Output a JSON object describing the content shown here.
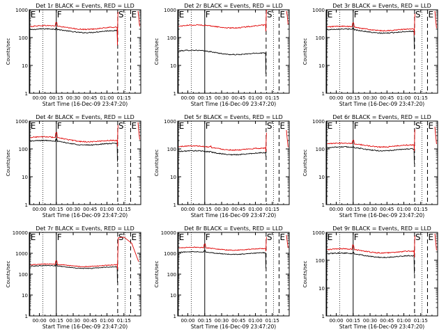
{
  "figure": {
    "background": "#ffffff",
    "colors": {
      "events": "#000000",
      "lld": "#e00000",
      "axis": "#000000",
      "marker": "#000000"
    }
  },
  "chart_data": [
    {
      "type": "line",
      "title": "Det 1r BLACK = Events, RED = LLD",
      "xlabel": "Start Time (16-Dec-09 23:47:20)",
      "ylabel": "Counts/sec",
      "xtick_labels": [
        "00:00",
        "00:15",
        "00:30",
        "00:45",
        "01:00",
        "01:15"
      ],
      "ytick_labels": [
        "1",
        "10",
        "100",
        "1000"
      ],
      "y_scale": "log",
      "ylim": [
        1,
        1000
      ],
      "xlim_minutes": [
        -9,
        90
      ],
      "markers": [
        {
          "label": "E",
          "t": -8.5,
          "style": "solid"
        },
        {
          "label": "F",
          "t": 15,
          "style": "solid"
        },
        {
          "label": "S",
          "t": 69.5,
          "style": "dashed"
        },
        {
          "label": "E",
          "t": 81,
          "style": "dashed"
        }
      ],
      "dotted_lines_t": [
        3,
        76
      ],
      "series": [
        {
          "name": "Events",
          "color": "#000000",
          "y0": 190,
          "y1": 160,
          "bump": 15,
          "bump_amp": 1.1,
          "dip": 2,
          "end": "none"
        },
        {
          "name": "LLD",
          "color": "#e00000",
          "y0": 250,
          "y1": 210,
          "bump": 15,
          "bump_amp": 1.35,
          "dip": 4,
          "end": "spike"
        }
      ]
    },
    {
      "type": "line",
      "title": "Det 2r BLACK = Events, RED = LLD",
      "xlabel": "Start Time (16-Dec-09 23:47:20)",
      "ylabel": "Counts/sec",
      "xtick_labels": [
        "00:00",
        "00:15",
        "00:30",
        "00:45",
        "01:00",
        "01:15"
      ],
      "ytick_labels": [
        "1",
        "10",
        "100",
        "1000"
      ],
      "y_scale": "log",
      "ylim": [
        1,
        1000
      ],
      "xlim_minutes": [
        -9,
        90
      ],
      "markers": [
        {
          "label": "E",
          "t": -8.5,
          "style": "solid"
        },
        {
          "label": "F",
          "t": 15,
          "style": "solid"
        },
        {
          "label": "S",
          "t": 69.5,
          "style": "dashed"
        },
        {
          "label": "E",
          "t": 81,
          "style": "dashed"
        }
      ],
      "dotted_lines_t": [
        3,
        76
      ],
      "series": [
        {
          "name": "Events",
          "color": "#000000",
          "y0": 33,
          "y1": 25,
          "bump": 15,
          "bump_amp": 1.0,
          "dip": 5,
          "end": "none"
        },
        {
          "name": "LLD",
          "color": "#e00000",
          "y0": 255,
          "y1": 250,
          "bump": 15,
          "bump_amp": 1.0,
          "dip": 1.5,
          "end": "spike"
        }
      ]
    },
    {
      "type": "line",
      "title": "Det 3r BLACK = Events, RED = LLD",
      "xlabel": "Start Time (16-Dec-09 23:47:20)",
      "ylabel": "Counts/sec",
      "xtick_labels": [
        "00:00",
        "00:15",
        "00:30",
        "00:45",
        "01:00",
        "01:15"
      ],
      "ytick_labels": [
        "1",
        "10",
        "100",
        "1000"
      ],
      "y_scale": "log",
      "ylim": [
        1,
        1000
      ],
      "xlim_minutes": [
        -9,
        90
      ],
      "markers": [
        {
          "label": "E",
          "t": -8.5,
          "style": "solid"
        },
        {
          "label": "F",
          "t": 15,
          "style": "solid"
        },
        {
          "label": "S",
          "t": 69.5,
          "style": "dashed"
        },
        {
          "label": "E",
          "t": 81,
          "style": "dashed"
        }
      ],
      "dotted_lines_t": [
        3,
        76
      ],
      "series": [
        {
          "name": "Events",
          "color": "#000000",
          "y0": 190,
          "y1": 150,
          "bump": 15,
          "bump_amp": 1.15,
          "dip": 4,
          "end": "none"
        },
        {
          "name": "LLD",
          "color": "#e00000",
          "y0": 240,
          "y1": 180,
          "bump": 15,
          "bump_amp": 1.4,
          "dip": 1.5,
          "end": "spike"
        }
      ]
    },
    {
      "type": "line",
      "title": "Det 4r BLACK = Events, RED = LLD",
      "xlabel": "Start Time (16-Dec-09 23:47:20)",
      "ylabel": "Counts/sec",
      "xtick_labels": [
        "00:00",
        "00:15",
        "00:30",
        "00:45",
        "01:00",
        "01:15"
      ],
      "ytick_labels": [
        "1",
        "10",
        "100",
        "1000"
      ],
      "y_scale": "log",
      "ylim": [
        1,
        1000
      ],
      "xlim_minutes": [
        -9,
        90
      ],
      "markers": [
        {
          "label": "E",
          "t": -8.5,
          "style": "solid"
        },
        {
          "label": "F",
          "t": 15,
          "style": "solid"
        },
        {
          "label": "S",
          "t": 69.5,
          "style": "dashed"
        },
        {
          "label": "E",
          "t": 81,
          "style": "dashed"
        }
      ],
      "dotted_lines_t": [
        3,
        76
      ],
      "series": [
        {
          "name": "Events",
          "color": "#000000",
          "y0": 190,
          "y1": 140,
          "bump": 15,
          "bump_amp": 1.2,
          "dip": 4,
          "end": "none"
        },
        {
          "name": "LLD",
          "color": "#e00000",
          "y0": 260,
          "y1": 180,
          "bump": 15,
          "bump_amp": 1.5,
          "dip": 1.5,
          "end": "spike"
        }
      ]
    },
    {
      "type": "line",
      "title": "Det 5r BLACK = Events, RED = LLD",
      "xlabel": "Start Time (16-Dec-09 23:47:20)",
      "ylabel": "Counts/sec",
      "xtick_labels": [
        "00:00",
        "00:15",
        "00:30",
        "00:45",
        "01:00",
        "01:15"
      ],
      "ytick_labels": [
        "1",
        "10",
        "100",
        "1000"
      ],
      "y_scale": "log",
      "ylim": [
        1,
        1000
      ],
      "xlim_minutes": [
        -9,
        90
      ],
      "markers": [
        {
          "label": "E",
          "t": -8.5,
          "style": "solid"
        },
        {
          "label": "F",
          "t": 15,
          "style": "solid"
        },
        {
          "label": "S",
          "t": 69.5,
          "style": "dashed"
        },
        {
          "label": "E",
          "t": 81,
          "style": "dashed"
        }
      ],
      "dotted_lines_t": [
        3,
        76
      ],
      "series": [
        {
          "name": "Events",
          "color": "#000000",
          "y0": 80,
          "y1": 65,
          "bump": 20,
          "bump_amp": 1.05,
          "dip": 1.2,
          "end": "none"
        },
        {
          "name": "LLD",
          "color": "#e00000",
          "y0": 120,
          "y1": 95,
          "bump": 20,
          "bump_amp": 1.1,
          "dip": 1.2,
          "end": "spike"
        }
      ]
    },
    {
      "type": "line",
      "title": "Det 6r BLACK = Events, RED = LLD",
      "xlabel": "Start Time (16-Dec-09 23:47:20)",
      "ylabel": "Counts/sec",
      "xtick_labels": [
        "00:00",
        "00:15",
        "00:30",
        "00:45",
        "01:00",
        "01:15"
      ],
      "ytick_labels": [
        "1",
        "10",
        "100",
        "1000"
      ],
      "y_scale": "log",
      "ylim": [
        1,
        1000
      ],
      "xlim_minutes": [
        -9,
        90
      ],
      "markers": [
        {
          "label": "E",
          "t": -8.5,
          "style": "solid"
        },
        {
          "label": "F",
          "t": 15,
          "style": "solid"
        },
        {
          "label": "S",
          "t": 69.5,
          "style": "dashed"
        },
        {
          "label": "E",
          "t": 81,
          "style": "dashed"
        }
      ],
      "dotted_lines_t": [
        3,
        76
      ],
      "series": [
        {
          "name": "Events",
          "color": "#000000",
          "y0": 110,
          "y1": 90,
          "bump": 15,
          "bump_amp": 1.05,
          "dip": 3,
          "end": "none"
        },
        {
          "name": "LLD",
          "color": "#e00000",
          "y0": 150,
          "y1": 125,
          "bump": 15,
          "bump_amp": 1.3,
          "dip": 1.5,
          "end": "spike"
        }
      ]
    },
    {
      "type": "line",
      "title": "Det 7r BLACK = Events, RED = LLD",
      "xlabel": "Start Time (16-Dec-09 23:47:20)",
      "ylabel": "Counts/sec",
      "xtick_labels": [
        "00:00",
        "00:15",
        "00:30",
        "00:45",
        "01:00",
        "01:15"
      ],
      "ytick_labels": [
        "1",
        "10",
        "100",
        "1000",
        "10000"
      ],
      "y_scale": "log",
      "ylim": [
        1,
        10000
      ],
      "xlim_minutes": [
        -9,
        90
      ],
      "markers": [
        {
          "label": "E",
          "t": -8.5,
          "style": "solid"
        },
        {
          "label": "F",
          "t": 15,
          "style": "solid"
        },
        {
          "label": "S",
          "t": 69.5,
          "style": "dashed"
        },
        {
          "label": "E",
          "t": 81,
          "style": "dashed"
        }
      ],
      "dotted_lines_t": [
        3,
        76
      ],
      "series": [
        {
          "name": "Events",
          "color": "#000000",
          "y0": 240,
          "y1": 200,
          "bump": 15,
          "bump_amp": 1.2,
          "dip": 5,
          "end": "none"
        },
        {
          "name": "LLD",
          "color": "#e00000",
          "y0": 280,
          "y1": 250,
          "bump": 15,
          "bump_amp": 1.5,
          "dip": 1.5,
          "end": "plateau"
        }
      ]
    },
    {
      "type": "line",
      "title": "Det 8r BLACK = Events, RED = LLD",
      "xlabel": "Start Time (16-Dec-09 23:47:20)",
      "ylabel": "Counts/sec",
      "xtick_labels": [
        "00:00",
        "00:15",
        "00:30",
        "00:45",
        "01:00",
        "01:15"
      ],
      "ytick_labels": [
        "1",
        "10",
        "100",
        "1000",
        "10000"
      ],
      "y_scale": "log",
      "ylim": [
        1,
        10000
      ],
      "xlim_minutes": [
        -9,
        90
      ],
      "markers": [
        {
          "label": "E",
          "t": -8.5,
          "style": "solid"
        },
        {
          "label": "F",
          "t": 15,
          "style": "solid"
        },
        {
          "label": "S",
          "t": 69.5,
          "style": "dashed"
        },
        {
          "label": "E",
          "t": 81,
          "style": "dashed"
        }
      ],
      "dotted_lines_t": [
        3,
        76
      ],
      "series": [
        {
          "name": "Events",
          "color": "#000000",
          "y0": 1100,
          "y1": 950,
          "bump": 15,
          "bump_amp": 1.2,
          "dip": 5,
          "end": "none"
        },
        {
          "name": "LLD",
          "color": "#e00000",
          "y0": 1800,
          "y1": 1500,
          "bump": 15,
          "bump_amp": 1.5,
          "dip": 1.2,
          "end": "spike"
        }
      ]
    },
    {
      "type": "line",
      "title": "Det 9r BLACK = Events, RED = LLD",
      "xlabel": "Start Time (16-Dec-09 23:47:20)",
      "ylabel": "Counts/sec",
      "xtick_labels": [
        "00:00",
        "00:15",
        "00:30",
        "00:45",
        "01:00",
        "01:15"
      ],
      "ytick_labels": [
        "1",
        "10",
        "100",
        "1000"
      ],
      "y_scale": "log",
      "ylim": [
        1,
        1000
      ],
      "xlim_minutes": [
        -9,
        90
      ],
      "markers": [
        {
          "label": "E",
          "t": -8.5,
          "style": "solid"
        },
        {
          "label": "F",
          "t": 15,
          "style": "solid"
        },
        {
          "label": "S",
          "t": 69.5,
          "style": "dashed"
        },
        {
          "label": "E",
          "t": 81,
          "style": "dashed"
        }
      ],
      "dotted_lines_t": [
        3,
        76
      ],
      "series": [
        {
          "name": "Events",
          "color": "#000000",
          "y0": 170,
          "y1": 130,
          "bump": 15,
          "bump_amp": 1.1,
          "dip": 4,
          "end": "none"
        },
        {
          "name": "LLD",
          "color": "#e00000",
          "y0": 240,
          "y1": 190,
          "bump": 15,
          "bump_amp": 1.4,
          "dip": 1.5,
          "end": "spike"
        }
      ]
    }
  ]
}
